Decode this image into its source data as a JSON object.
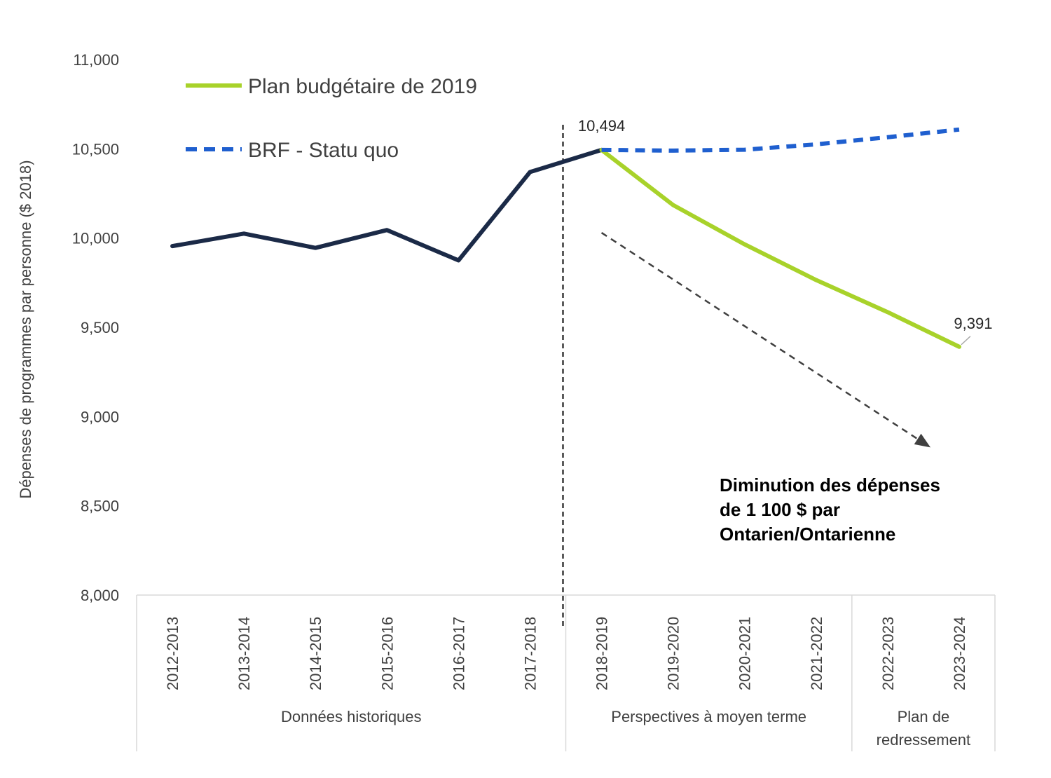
{
  "chart_data": {
    "type": "line",
    "title": "",
    "ylabel": "Dépenses de programmes par personne ($ 2018)",
    "xlabel": "",
    "ylim": [
      8000,
      11000
    ],
    "yticks": [
      "11,000",
      "10,500",
      "10,000",
      "9,500",
      "9,000",
      "8,500",
      "8,000"
    ],
    "ytick_values": [
      11000,
      10500,
      10000,
      9500,
      9000,
      8500,
      8000
    ],
    "categories": [
      "2012-2013",
      "2013-2014",
      "2014-2015",
      "2015-2016",
      "2016-2017",
      "2017-2018",
      "2018-2019",
      "2019-2020",
      "2020-2021",
      "2021-2022",
      "2022-2023",
      "2023-2024"
    ],
    "groups": [
      {
        "label": "Données historiques",
        "start": 0,
        "end": 5
      },
      {
        "label": "Perspectives à moyen terme",
        "start": 6,
        "end": 9
      },
      {
        "label": "Plan de redressement",
        "start": 10,
        "end": 11
      }
    ],
    "series": [
      {
        "name": "",
        "color": "#1b2a47",
        "style": "solid",
        "values": [
          9955,
          10025,
          9945,
          10045,
          9875,
          10370,
          10494,
          null,
          null,
          null,
          null,
          null
        ]
      },
      {
        "name": "Plan budgétaire de 2019",
        "color": "#a8d22a",
        "style": "solid",
        "values": [
          null,
          null,
          null,
          null,
          null,
          null,
          10494,
          10185,
          9965,
          9765,
          9585,
          9391
        ]
      },
      {
        "name": "BRF - Statu quo",
        "color": "#1f5fcf",
        "style": "dashed",
        "values": [
          null,
          null,
          null,
          null,
          null,
          null,
          10494,
          10490,
          10495,
          10525,
          10565,
          10608
        ]
      }
    ],
    "data_labels": [
      {
        "text": "10,494",
        "series": 0,
        "index": 6
      },
      {
        "text": "9,391",
        "series": 1,
        "index": 11
      }
    ],
    "annotation": {
      "lines": [
        "Diminution des dépenses",
        "de 1 100 $ par",
        "Ontarien/Ontarienne"
      ],
      "arrow_from": {
        "index": 6,
        "value": 10030
      },
      "arrow_to": {
        "index": 10.55,
        "value": 8840
      }
    },
    "divider_after_index": 5,
    "legend_position": "top-left",
    "grid": false
  }
}
